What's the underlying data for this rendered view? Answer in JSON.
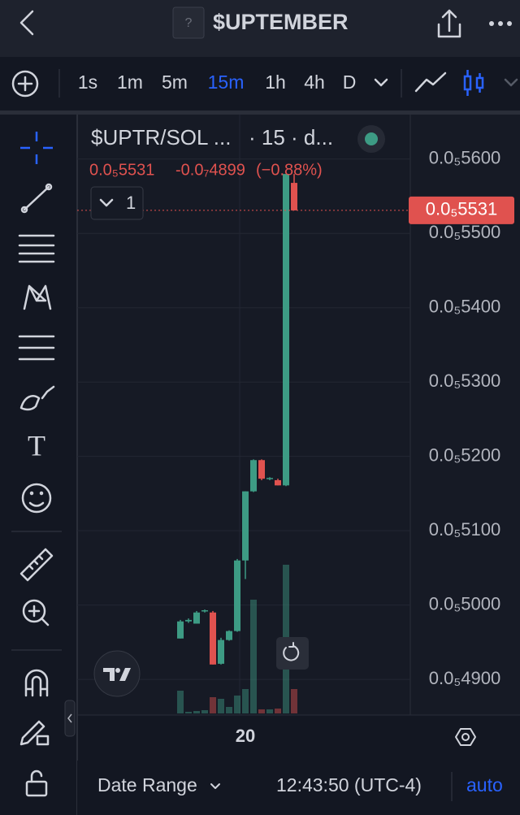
{
  "header": {
    "title": "$UPTEMBER",
    "icon_text": "?"
  },
  "toolbar": {
    "intervals": [
      "1s",
      "1m",
      "5m",
      "15m",
      "1h",
      "4h",
      "D"
    ],
    "active": "15m"
  },
  "tools": {
    "text_tool": "T"
  },
  "chart_data": {
    "type": "candlestick",
    "legend": {
      "symbol": "$UPTR/SOL ...",
      "interval": "· 15 · d...",
      "close": "0.0₅5531",
      "change": "-0.0₇4899",
      "change_pct": "(−0.88%)",
      "indicator_count": "1"
    },
    "categories": [
      null,
      null,
      null,
      null,
      null,
      null,
      null,
      null,
      "20",
      null,
      null,
      null,
      null,
      null,
      null
    ],
    "open": [
      4.955e-06,
      4.978e-06,
      4.975e-06,
      4.992e-06,
      4.99e-06,
      4.921e-06,
      4.953e-06,
      4.965e-06,
      5.06e-06,
      5.153e-06,
      5.195e-06,
      5.17e-06,
      5.168e-06,
      5.161e-06,
      5.568e-06
    ],
    "high": [
      4.98e-06,
      4.982e-06,
      4.992e-06,
      4.994e-06,
      4.992e-06,
      4.956e-06,
      4.966e-06,
      5.062e-06,
      5.153e-06,
      5.196e-06,
      5.196e-06,
      5.172e-06,
      5.17e-06,
      5.58e-06,
      5.58e-06
    ],
    "low": [
      4.955e-06,
      4.976e-06,
      4.975e-06,
      4.99e-06,
      4.92e-06,
      4.92e-06,
      4.952e-06,
      4.964e-06,
      5.035e-06,
      5.152e-06,
      5.168e-06,
      5.168e-06,
      5.161e-06,
      5.16e-06,
      5.531e-06
    ],
    "close": [
      4.978e-06,
      4.98e-06,
      4.99e-06,
      4.993e-06,
      4.92e-06,
      4.953e-06,
      4.965e-06,
      5.06e-06,
      5.153e-06,
      5.195e-06,
      5.17e-06,
      5.171e-06,
      5.161e-06,
      5.58e-06,
      5.531e-06
    ],
    "volume": [
      28,
      2,
      3,
      4,
      20,
      18,
      8,
      22,
      30,
      140,
      5,
      5,
      6,
      183,
      30
    ],
    "up_color": "#3d9b84",
    "down_color": "#e0524f",
    "ylim": [
      4.852e-06,
      5.661e-06
    ],
    "yticks": [
      {
        "value": 5.6e-06,
        "label": "0.0₅5600"
      },
      {
        "value": 5.5e-06,
        "label": "0.0₅5500"
      },
      {
        "value": 5.4e-06,
        "label": "0.0₅5400"
      },
      {
        "value": 5.3e-06,
        "label": "0.0₅5300"
      },
      {
        "value": 5.2e-06,
        "label": "0.0₅5200"
      },
      {
        "value": 5.1e-06,
        "label": "0.0₅5100"
      },
      {
        "value": 5e-06,
        "label": "0.0₅5000"
      },
      {
        "value": 4.9e-06,
        "label": "0.0₅4900"
      }
    ],
    "last_price": {
      "value": 5.531e-06,
      "label": "0.0₅5531"
    },
    "grid": true
  },
  "footer": {
    "date_range": "Date Range",
    "time": "12:43:50 (UTC-4)",
    "scale": "auto"
  }
}
